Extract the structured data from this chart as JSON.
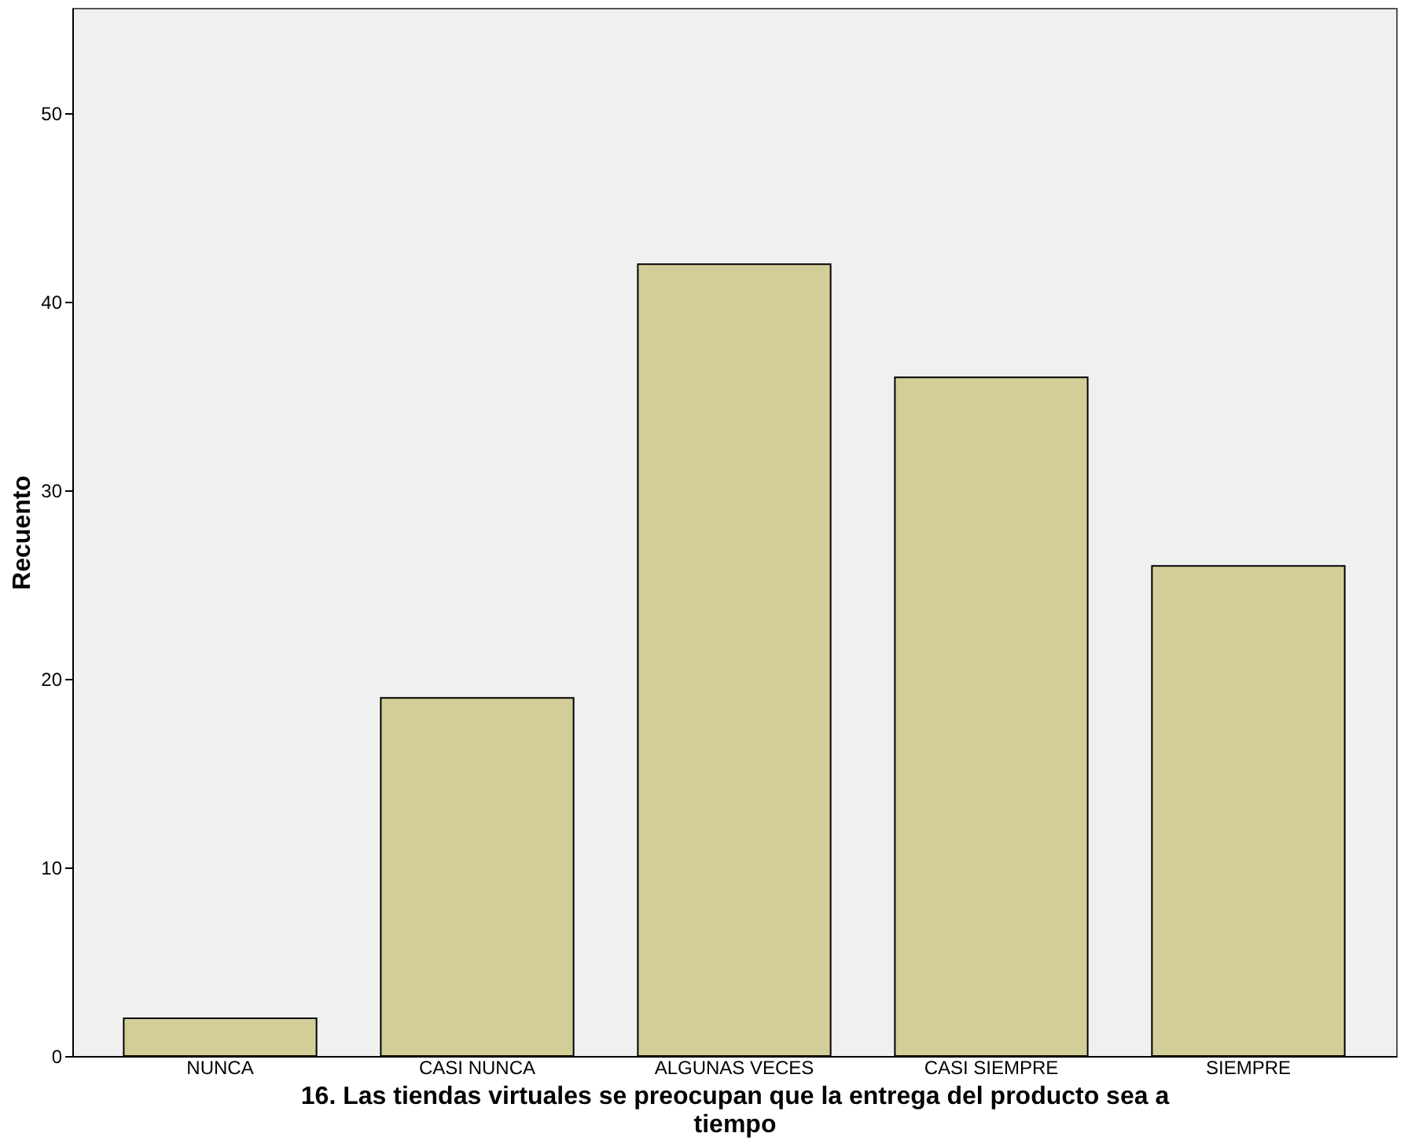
{
  "chart_data": {
    "type": "bar",
    "xlabel": "16. Las tiendas virtuales se preocupan que la entrega del producto sea a tiempo",
    "ylabel": "Recuento",
    "categories": [
      "NUNCA",
      "CASI NUNCA",
      "ALGUNAS VECES",
      "CASI SIEMPRE",
      "SIEMPRE"
    ],
    "values": [
      2,
      19,
      42,
      36,
      26
    ],
    "color": "#d3ce97",
    "ylim": [
      0,
      55.6
    ],
    "yticks": [
      0,
      10,
      20,
      30,
      40,
      50
    ],
    "grid": false
  }
}
